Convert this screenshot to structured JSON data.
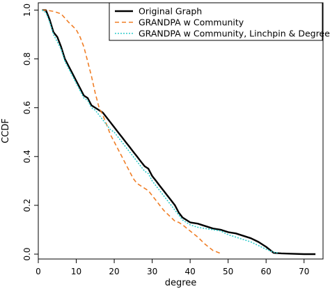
{
  "chart_data": {
    "type": "line",
    "xlabel": "degree",
    "ylabel": "CCDF",
    "xlim": [
      0,
      75
    ],
    "ylim": [
      -0.02,
      1.03
    ],
    "x_ticks": [
      "0",
      "10",
      "20",
      "30",
      "40",
      "50",
      "60",
      "70"
    ],
    "y_ticks": [
      "0.0",
      "0.2",
      "0.4",
      "0.6",
      "0.8",
      "1.0"
    ],
    "legend_position": "top-right",
    "series": [
      {
        "name": "Original Graph",
        "color": "#000000",
        "style": "solid",
        "x": [
          1,
          2,
          3,
          4,
          5,
          6,
          7,
          8,
          9,
          10,
          11,
          12,
          13,
          14,
          15,
          16,
          17,
          18,
          19,
          20,
          21,
          22,
          23,
          24,
          25,
          26,
          27,
          28,
          29,
          30,
          31,
          32,
          33,
          34,
          35,
          36,
          37,
          38,
          40,
          42,
          44,
          46,
          48,
          50,
          52,
          54,
          56,
          58,
          60,
          62,
          64,
          66,
          70,
          73
        ],
        "y": [
          1.0,
          1.0,
          0.96,
          0.91,
          0.89,
          0.85,
          0.8,
          0.77,
          0.74,
          0.71,
          0.68,
          0.65,
          0.64,
          0.61,
          0.6,
          0.59,
          0.58,
          0.56,
          0.54,
          0.52,
          0.5,
          0.48,
          0.46,
          0.44,
          0.42,
          0.4,
          0.38,
          0.36,
          0.35,
          0.32,
          0.3,
          0.28,
          0.26,
          0.24,
          0.22,
          0.2,
          0.17,
          0.15,
          0.13,
          0.125,
          0.115,
          0.105,
          0.1,
          0.09,
          0.085,
          0.075,
          0.065,
          0.05,
          0.03,
          0.005,
          0.003,
          0.002,
          0.0,
          0.0
        ]
      },
      {
        "name": "GRANDPA w Community",
        "color": "#f07e26",
        "style": "dashed",
        "x": [
          1,
          2,
          4,
          6,
          8,
          10,
          11,
          12,
          13,
          14,
          15,
          16,
          17,
          18,
          19,
          20,
          21,
          22,
          23,
          24,
          25,
          26,
          27,
          28,
          29,
          30,
          31,
          32,
          33,
          34,
          35,
          36,
          37,
          38,
          40,
          42,
          44,
          46,
          48
        ],
        "y": [
          1.0,
          1.0,
          0.995,
          0.985,
          0.95,
          0.92,
          0.89,
          0.85,
          0.79,
          0.73,
          0.66,
          0.6,
          0.57,
          0.53,
          0.49,
          0.46,
          0.43,
          0.4,
          0.37,
          0.34,
          0.31,
          0.29,
          0.28,
          0.27,
          0.26,
          0.24,
          0.22,
          0.2,
          0.18,
          0.165,
          0.15,
          0.135,
          0.13,
          0.12,
          0.095,
          0.07,
          0.04,
          0.015,
          0.003
        ]
      },
      {
        "name": "GRANDPA w Community, Linchpin & Degree",
        "color": "#2ecccc",
        "style": "dotted",
        "x": [
          1,
          2,
          3,
          4,
          5,
          6,
          7,
          8,
          9,
          10,
          11,
          12,
          13,
          14,
          15,
          16,
          17,
          18,
          19,
          20,
          21,
          22,
          23,
          24,
          25,
          26,
          27,
          28,
          29,
          30,
          31,
          32,
          33,
          34,
          35,
          36,
          37,
          38,
          40,
          42,
          44,
          46,
          48,
          50,
          52,
          54,
          56,
          58,
          60,
          62,
          63
        ],
        "y": [
          1.0,
          0.99,
          0.95,
          0.9,
          0.87,
          0.84,
          0.79,
          0.76,
          0.73,
          0.7,
          0.67,
          0.64,
          0.63,
          0.6,
          0.59,
          0.57,
          0.55,
          0.53,
          0.51,
          0.5,
          0.48,
          0.46,
          0.44,
          0.42,
          0.4,
          0.38,
          0.36,
          0.34,
          0.33,
          0.3,
          0.28,
          0.26,
          0.24,
          0.22,
          0.2,
          0.18,
          0.16,
          0.14,
          0.12,
          0.11,
          0.105,
          0.1,
          0.095,
          0.08,
          0.07,
          0.06,
          0.05,
          0.035,
          0.02,
          0.008,
          0.005
        ]
      }
    ]
  }
}
